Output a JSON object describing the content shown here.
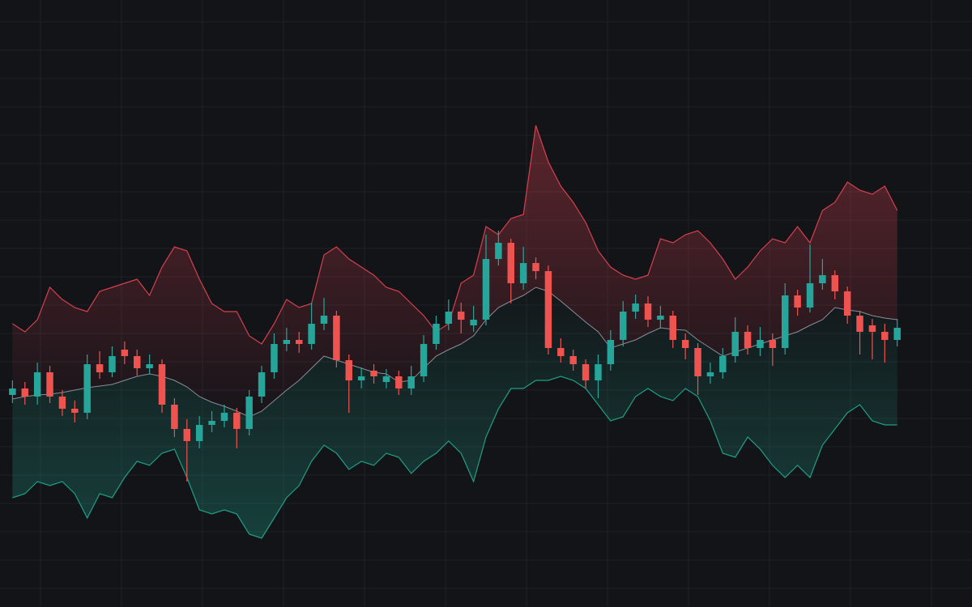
{
  "chart_data": {
    "type": "candlestick",
    "grid": true,
    "background": "#131418",
    "grid_color": "#1f2127",
    "up_color": "#26a69a",
    "down_color": "#ef5350",
    "xlim": [
      0,
      78
    ],
    "ylim": [
      0,
      750
    ],
    "xticks": [
      3.25,
      9.75,
      16.25,
      22.75,
      29.25,
      35.75,
      42.25,
      48.75,
      55.25,
      61.75,
      68.25,
      74.75
    ],
    "yticks": [
      723,
      688,
      653,
      618,
      583,
      548,
      513,
      478,
      443,
      408,
      373,
      338,
      303,
      268,
      233,
      198,
      163,
      128,
      93,
      58,
      23
    ],
    "x": [
      1,
      2,
      3,
      4,
      5,
      6,
      7,
      8,
      9,
      10,
      11,
      12,
      13,
      14,
      15,
      16,
      17,
      18,
      19,
      20,
      21,
      22,
      23,
      24,
      25,
      26,
      27,
      28,
      29,
      30,
      31,
      32,
      33,
      34,
      35,
      36,
      37,
      38,
      39,
      40,
      41,
      42,
      43,
      44,
      45,
      46,
      47,
      48,
      49,
      50,
      51,
      52,
      53,
      54,
      55,
      56,
      57,
      58,
      59,
      60,
      61,
      62,
      63,
      64,
      65,
      66,
      67,
      68,
      69,
      70,
      71,
      72
    ],
    "open": [
      262,
      270,
      260,
      290,
      260,
      245,
      240,
      300,
      290,
      318,
      310,
      295,
      300,
      250,
      220,
      205,
      225,
      230,
      240,
      220,
      260,
      290,
      325,
      330,
      325,
      350,
      360,
      305,
      280,
      292,
      278,
      285,
      270,
      285,
      325,
      350,
      365,
      348,
      355,
      430,
      450,
      400,
      425,
      415,
      320,
      310,
      300,
      280,
      300,
      330,
      365,
      375,
      355,
      360,
      330,
      320,
      285,
      290,
      310,
      340,
      320,
      330,
      320,
      385,
      370,
      400,
      410,
      390,
      360,
      348,
      340,
      330
    ],
    "high": [
      280,
      278,
      302,
      298,
      268,
      255,
      312,
      316,
      322,
      328,
      318,
      312,
      306,
      258,
      232,
      236,
      242,
      250,
      246,
      268,
      298,
      338,
      345,
      340,
      376,
      382,
      366,
      312,
      296,
      300,
      294,
      292,
      298,
      336,
      360,
      380,
      376,
      372,
      460,
      465,
      455,
      445,
      432,
      422,
      332,
      318,
      306,
      312,
      342,
      378,
      386,
      384,
      372,
      366,
      338,
      326,
      302,
      320,
      358,
      348,
      346,
      338,
      400,
      392,
      448,
      430,
      416,
      396,
      366,
      356,
      350,
      356
    ],
    "low": [
      252,
      250,
      250,
      252,
      236,
      228,
      232,
      282,
      284,
      300,
      286,
      288,
      240,
      210,
      155,
      196,
      216,
      222,
      196,
      212,
      252,
      282,
      316,
      314,
      318,
      342,
      296,
      240,
      270,
      276,
      270,
      262,
      262,
      278,
      318,
      342,
      338,
      340,
      348,
      422,
      375,
      392,
      405,
      312,
      302,
      292,
      270,
      258,
      292,
      322,
      356,
      346,
      344,
      320,
      306,
      262,
      276,
      282,
      302,
      312,
      310,
      298,
      312,
      360,
      364,
      392,
      380,
      350,
      312,
      306,
      302,
      322
    ],
    "close": [
      270,
      260,
      290,
      260,
      245,
      240,
      300,
      290,
      310,
      310,
      295,
      300,
      250,
      220,
      205,
      225,
      230,
      240,
      220,
      260,
      290,
      325,
      330,
      325,
      350,
      360,
      305,
      280,
      285,
      285,
      285,
      270,
      285,
      325,
      350,
      365,
      355,
      355,
      430,
      450,
      400,
      425,
      415,
      320,
      310,
      300,
      280,
      300,
      330,
      365,
      375,
      355,
      360,
      330,
      320,
      285,
      290,
      310,
      340,
      320,
      330,
      320,
      385,
      370,
      400,
      410,
      390,
      360,
      340,
      340,
      330,
      345
    ],
    "upper_band": {
      "color": "#d5404f",
      "values": [
        350,
        340,
        355,
        395,
        380,
        370,
        365,
        390,
        395,
        400,
        405,
        385,
        420,
        445,
        440,
        405,
        375,
        365,
        365,
        335,
        325,
        350,
        380,
        370,
        375,
        435,
        445,
        430,
        420,
        410,
        395,
        390,
        375,
        360,
        340,
        350,
        400,
        410,
        470,
        460,
        480,
        485,
        595,
        550,
        520,
        500,
        475,
        440,
        420,
        410,
        405,
        410,
        455,
        450,
        460,
        465,
        450,
        430,
        405,
        420,
        440,
        455,
        450,
        470,
        450,
        490,
        500,
        525,
        515,
        510,
        520,
        490
      ]
    },
    "lower_band": {
      "color": "#1f9e86",
      "values": [
        135,
        140,
        155,
        150,
        155,
        140,
        110,
        140,
        135,
        160,
        180,
        175,
        190,
        195,
        160,
        120,
        115,
        120,
        115,
        90,
        85,
        110,
        135,
        150,
        180,
        200,
        190,
        170,
        180,
        175,
        190,
        185,
        165,
        180,
        190,
        205,
        190,
        155,
        210,
        245,
        270,
        270,
        280,
        280,
        285,
        280,
        270,
        250,
        230,
        235,
        260,
        270,
        260,
        255,
        270,
        260,
        230,
        190,
        185,
        210,
        195,
        175,
        160,
        175,
        160,
        200,
        220,
        240,
        250,
        230,
        225,
        225
      ]
    },
    "moving_average": {
      "color": "#8a8d96",
      "values": [
        257,
        260,
        262,
        263,
        265,
        268,
        271,
        273,
        275,
        280,
        285,
        288,
        285,
        280,
        272,
        260,
        253,
        248,
        242,
        235,
        242,
        255,
        268,
        280,
        295,
        310,
        305,
        300,
        295,
        290,
        288,
        278,
        280,
        295,
        310,
        318,
        325,
        335,
        355,
        370,
        378,
        385,
        395,
        390,
        378,
        365,
        352,
        340,
        320,
        325,
        330,
        338,
        345,
        343,
        342,
        330,
        320,
        310,
        315,
        320,
        325,
        330,
        335,
        340,
        348,
        355,
        370,
        367,
        365,
        360,
        357,
        355
      ]
    }
  }
}
